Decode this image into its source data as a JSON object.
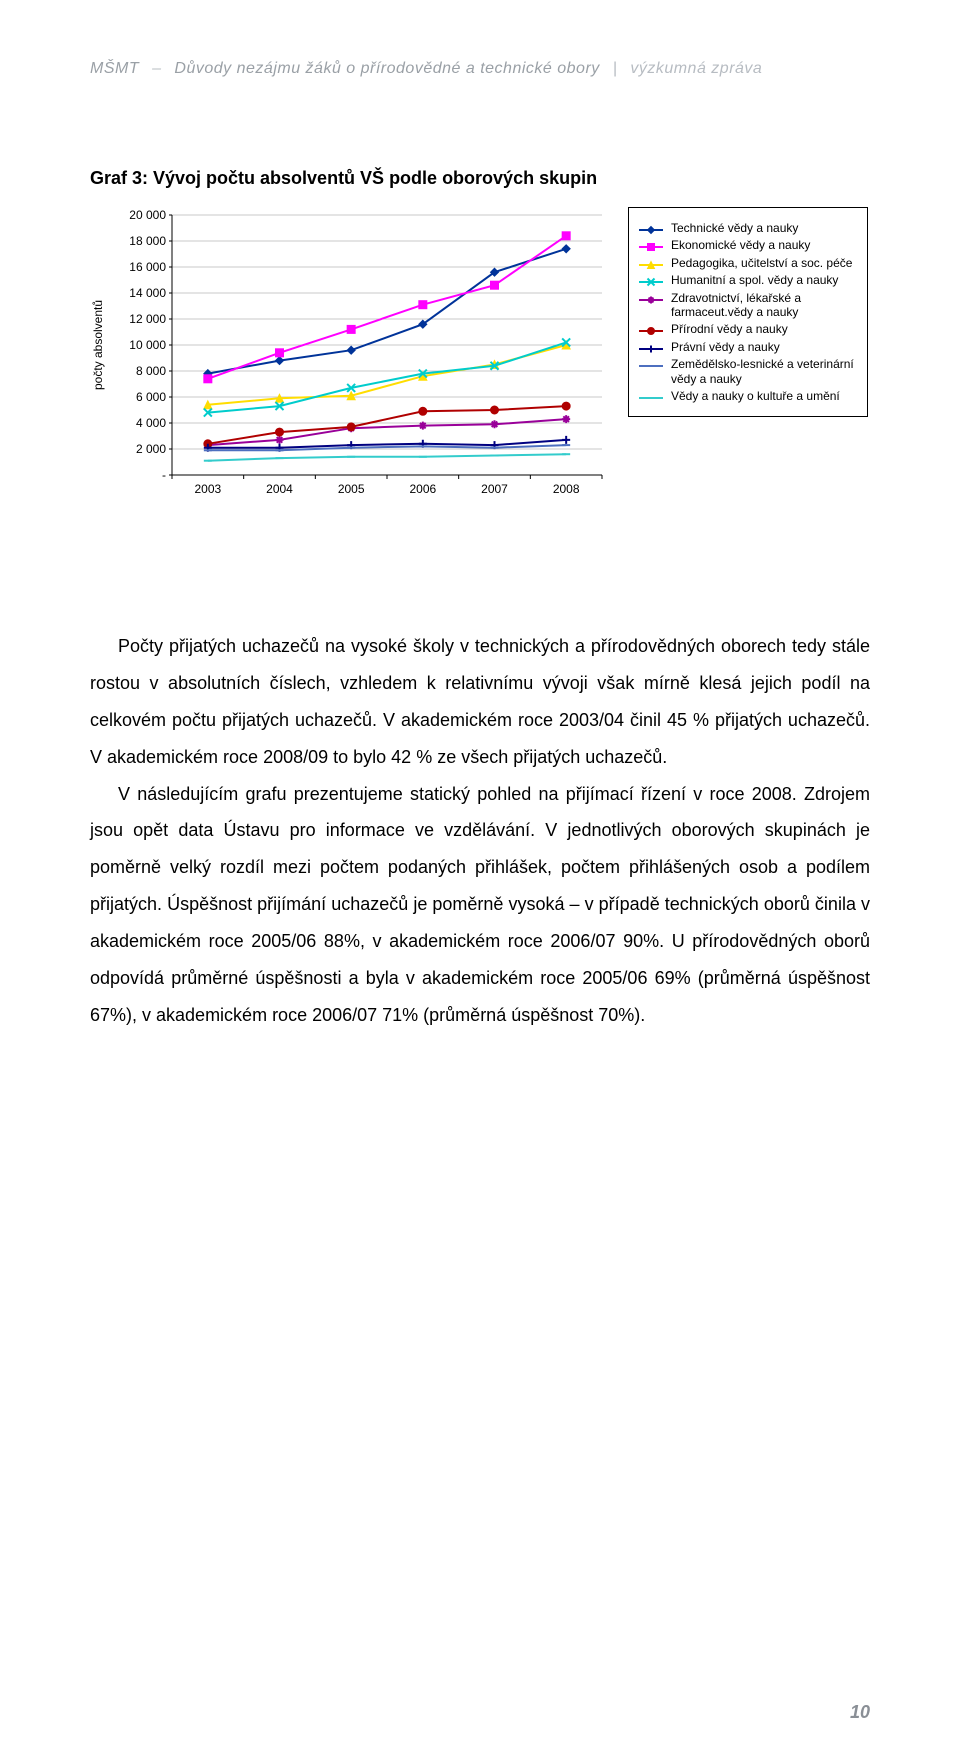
{
  "header": {
    "org": "MŠMT",
    "title": "Důvody nezájmu žáků o přírodovědné a technické obory",
    "subtitle": "výzkumná zpráva"
  },
  "chart": {
    "title": "Graf  3: Vývoj počtu absolventů VŠ podle oborových skupin",
    "type": "line",
    "background_color": "#ffffff",
    "grid_color": "#c9c9c9",
    "axis_color": "#000000",
    "text_color": "#000000",
    "font_size": 12,
    "title_fontsize": 18,
    "title_fontweight": "bold",
    "plot_inner_width": 430,
    "plot_inner_height": 260,
    "ylabel": "počty absolventů",
    "ylabel_rotation_deg": -90,
    "ylim": [
      0,
      20000
    ],
    "ytick_step": 2000,
    "yticks": [
      "-",
      "2 000",
      "4 000",
      "6 000",
      "8 000",
      "10 000",
      "12 000",
      "14 000",
      "16 000",
      "18 000",
      "20 000"
    ],
    "x_categories": [
      "2003",
      "2004",
      "2005",
      "2006",
      "2007",
      "2008"
    ],
    "marker_size": 8,
    "line_width": 2,
    "series": [
      {
        "name": "Technické vědy a nauky",
        "color": "#003399",
        "marker": "diamond",
        "values": [
          7800,
          8800,
          9600,
          11600,
          15600,
          17400
        ]
      },
      {
        "name": "Ekonomické vědy a nauky",
        "color": "#ff00ff",
        "marker": "square",
        "values": [
          7400,
          9400,
          11200,
          13100,
          14600,
          18400
        ]
      },
      {
        "name": "Pedagogika, učitelství a soc. péče",
        "color": "#ffdd00",
        "marker": "triangle",
        "values": [
          5400,
          5900,
          6100,
          7600,
          8500,
          10000
        ]
      },
      {
        "name": "Humanitní a spol. vědy a nauky",
        "color": "#00cccc",
        "marker": "x",
        "values": [
          4800,
          5300,
          6700,
          7800,
          8400,
          10200
        ]
      },
      {
        "name": "Zdravotnictví, lékařské a farmaceut.vědy a nauky",
        "color": "#990099",
        "marker": "star",
        "values": [
          2300,
          2700,
          3600,
          3800,
          3900,
          4300
        ]
      },
      {
        "name": "Přírodní vědy a nauky",
        "color": "#b00000",
        "marker": "circle",
        "values": [
          2400,
          3300,
          3700,
          4900,
          5000,
          5300
        ]
      },
      {
        "name": "Právní vědy a nauky",
        "color": "#000080",
        "marker": "plus",
        "values": [
          2100,
          2100,
          2300,
          2400,
          2300,
          2700
        ]
      },
      {
        "name": "Zemědělsko-lesnické a veterinární vědy a nauky",
        "color": "#4d6fbf",
        "marker": "dash",
        "values": [
          1900,
          1900,
          2100,
          2200,
          2100,
          2300
        ]
      },
      {
        "name": "Vědy a nauky o kultuře a umění",
        "color": "#33cccc",
        "marker": "dash",
        "values": [
          1100,
          1300,
          1400,
          1400,
          1500,
          1600
        ]
      }
    ]
  },
  "body": {
    "p1": "Počty přijatých uchazečů na vysoké školy v technických a přírodovědných oborech tedy stále rostou v absolutních číslech, vzhledem k relativnímu vývoji však mírně klesá jejich podíl na celkovém počtu přijatých uchazečů. V akademickém roce 2003/04 činil 45 % přijatých uchazečů. V akademickém roce 2008/09 to bylo 42 % ze všech přijatých uchazečů.",
    "p2": "V následujícím grafu prezentujeme statický pohled na přijímací řízení v roce 2008. Zdrojem jsou opět data Ústavu pro informace ve vzdělávání. V jednotlivých oborových skupinách je poměrně velký rozdíl mezi počtem podaných přihlášek, počtem přihlášených osob a podílem přijatých. Úspěšnost přijímání uchazečů je poměrně vysoká – v případě technických oborů činila v akademickém roce 2005/06 88%, v akademickém roce 2006/07 90%. U přírodovědných oborů odpovídá průměrné úspěšnosti a byla v akademickém roce 2005/06 69% (průměrná úspěšnost 67%), v akademickém roce 2006/07 71% (průměrná úspěšnost 70%)."
  },
  "page_number": "10"
}
